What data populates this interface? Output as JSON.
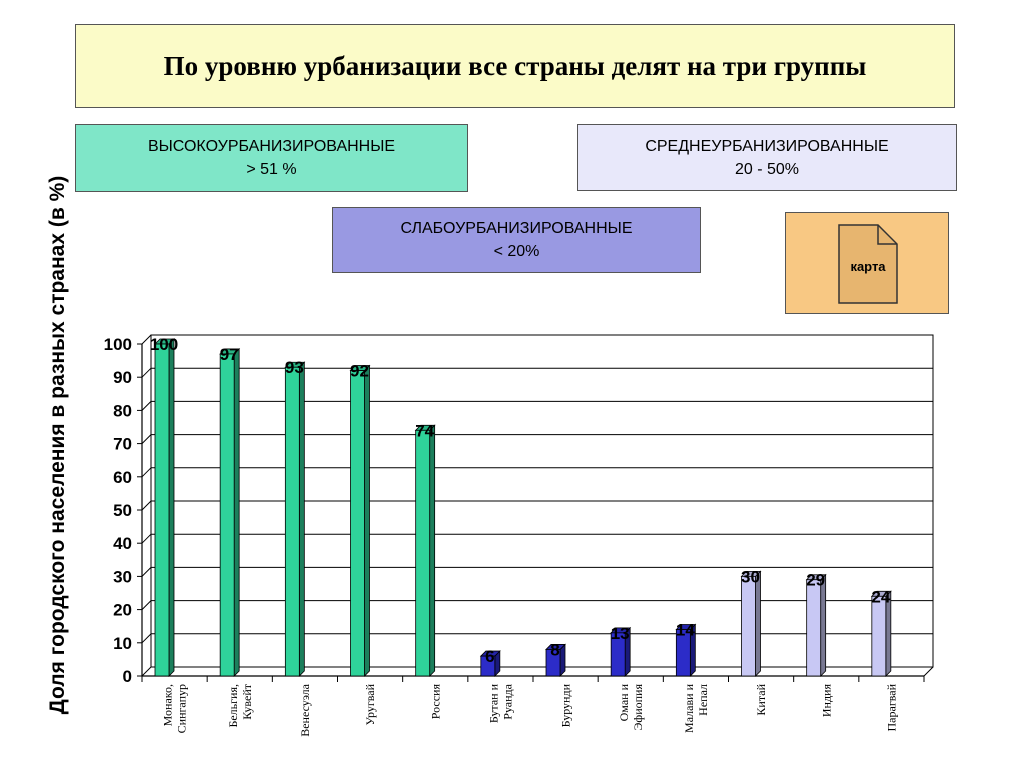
{
  "header": {
    "title": "По уровню урбанизации все страны делят на три группы"
  },
  "groups": {
    "high": {
      "line1": "ВЫСОКОУРБАНИЗИРОВАННЫЕ",
      "line2": "> 51 %",
      "color": "#7fe6c8"
    },
    "medium": {
      "line1": "СРЕДНЕУРБАНИЗИРОВАННЫЕ",
      "line2": "20 - 50%",
      "color": "#e8e8fa"
    },
    "low": {
      "line1": "СЛАБОУРБАНИЗИРОВАННЫЕ",
      "line2": "< 20%",
      "color": "#9999e2"
    }
  },
  "map_button": {
    "label": "карта",
    "icon": "document-icon"
  },
  "chart_data": {
    "type": "bar",
    "ylabel": "Доля городского населения в разных странах (в %)",
    "xlabel": "",
    "ylim": [
      0,
      100
    ],
    "yticks": [
      0,
      10,
      20,
      30,
      40,
      50,
      60,
      70,
      80,
      90,
      100
    ],
    "grid": true,
    "categories": [
      [
        "Монако,",
        "Сингапур"
      ],
      [
        "Бельгия,",
        "Кувейт"
      ],
      [
        "Венесуэла"
      ],
      [
        "Уругвай"
      ],
      [
        "Россия"
      ],
      [
        "Бутан и",
        "Руанда"
      ],
      [
        "Бурунди"
      ],
      [
        "Оман и",
        "Эфиопия"
      ],
      [
        "Малави и",
        "Непал"
      ],
      [
        "Китай"
      ],
      [
        "Индия"
      ],
      [
        "Парагвай"
      ]
    ],
    "values": [
      100,
      97,
      93,
      92,
      74,
      6,
      8,
      13,
      14,
      30,
      29,
      24
    ],
    "data_labels": [
      "100",
      "97",
      "93",
      "92",
      "74",
      "6",
      "8",
      "13",
      "14",
      "30",
      "29",
      "24"
    ],
    "bar_colors": [
      "#2fd39a",
      "#2fd39a",
      "#2fd39a",
      "#2fd39a",
      "#2fd39a",
      "#2c2cc8",
      "#2c2cc8",
      "#2c2cc8",
      "#2c2cc8",
      "#c8c8f4",
      "#c8c8f4",
      "#c8c8f4"
    ]
  }
}
